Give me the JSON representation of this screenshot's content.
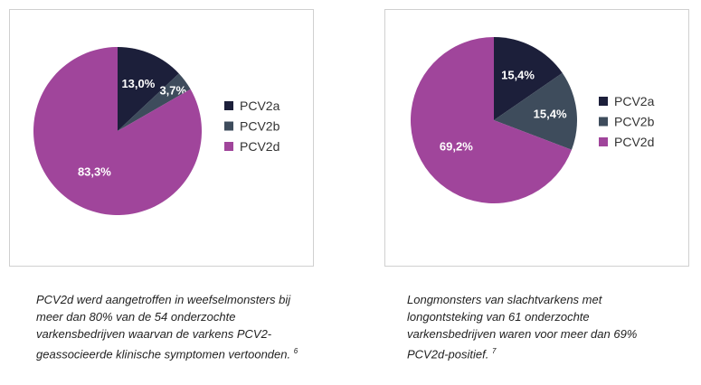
{
  "chart_data": [
    {
      "type": "pie",
      "categories": [
        "PCV2a",
        "PCV2b",
        "PCV2d"
      ],
      "values": [
        13.0,
        3.7,
        83.3
      ],
      "value_labels": [
        "13,0%",
        "3,7%",
        "83,3%"
      ],
      "colors": [
        "#1c1f3a",
        "#3e4c5c",
        "#a0459b"
      ],
      "caption": "PCV2d werd aangetroffen in weefselmonsters bij meer dan 80% van de 54 onderzochte varkensbedrijven waarvan de varkens PCV2-geassocieerde klinische symptomen vertoonden.",
      "footnote": "6"
    },
    {
      "type": "pie",
      "categories": [
        "PCV2a",
        "PCV2b",
        "PCV2d"
      ],
      "values": [
        15.4,
        15.4,
        69.2
      ],
      "value_labels": [
        "15,4%",
        "15,4%",
        "69,2%"
      ],
      "colors": [
        "#1c1f3a",
        "#3e4c5c",
        "#a0459b"
      ],
      "caption": "Longmonsters van slachtvarkens met longontsteking van 61 onderzochte varkensbedrijven waren voor meer dan 69% PCV2d-positief.",
      "footnote": "7"
    }
  ]
}
